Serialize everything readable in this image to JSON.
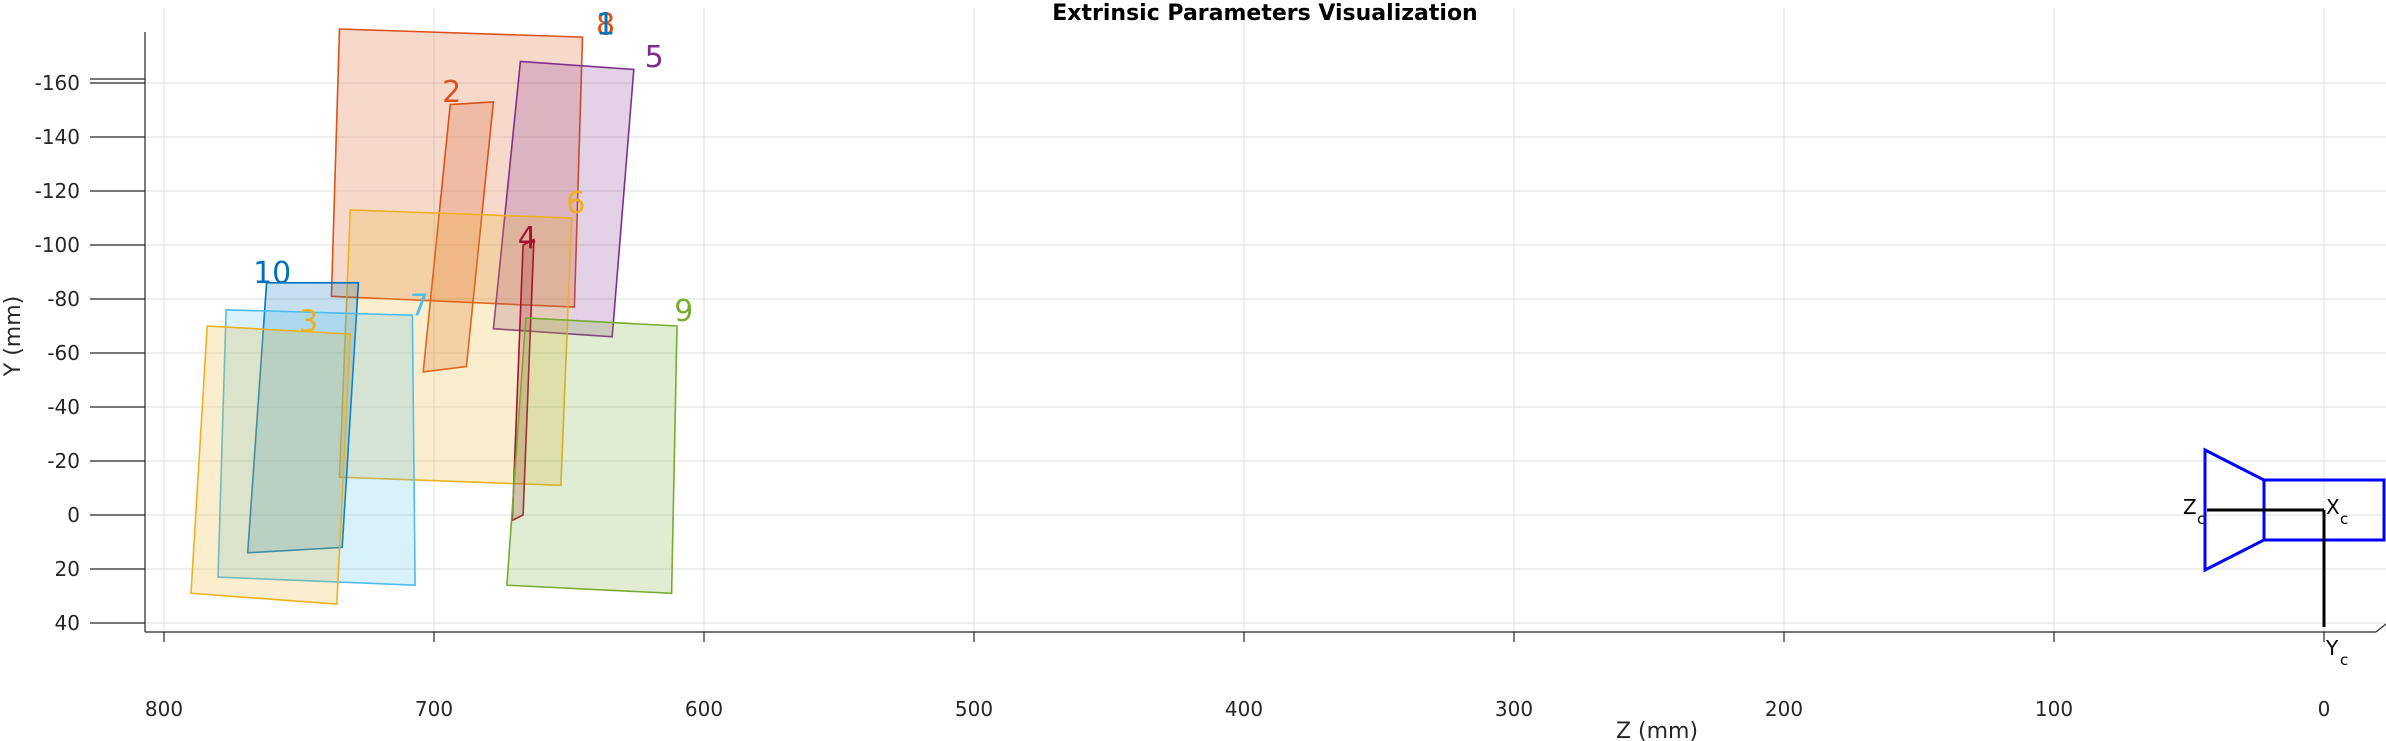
{
  "chart_data": {
    "type": "3d-extrinsics",
    "title": "Extrinsic Parameters Visualization",
    "xlabel": "Z (mm)",
    "ylabel": "Y (mm)",
    "x_ticks": [
      "800",
      "700",
      "600",
      "500",
      "400",
      "300",
      "200",
      "100",
      "0"
    ],
    "y_ticks": [
      "-160",
      "-140",
      "-120",
      "-100",
      "-80",
      "-60",
      "-40",
      "-20",
      "0",
      "20",
      "40"
    ],
    "grid": true,
    "boards": [
      {
        "name": "8",
        "color": "#D95319",
        "z": [
          735,
          645,
          648,
          738
        ],
        "y": [
          -180,
          -177,
          -77,
          -81
        ],
        "label_z": 640,
        "label_y": -182
      },
      {
        "name": "1",
        "color": "#0072BD",
        "z": [
          738,
          648,
          648,
          738
        ],
        "y": [
          -180,
          -177,
          -77,
          -81
        ],
        "label_z": 640,
        "label_y": -182,
        "hidden": true
      },
      {
        "name": "5",
        "color": "#7E2F8E",
        "z": [
          668,
          626,
          634,
          678
        ],
        "y": [
          -168,
          -165,
          -66,
          -69
        ],
        "label_z": 622,
        "label_y": -170
      },
      {
        "name": "2",
        "color": "#D95319",
        "z": [
          694,
          678,
          688,
          704
        ],
        "y": [
          -152,
          -153,
          -55,
          -53
        ],
        "label_z": 697,
        "label_y": -157
      },
      {
        "name": "6",
        "color": "#EDB120",
        "z": [
          731,
          649,
          653,
          735
        ],
        "y": [
          -113,
          -110,
          -11,
          -14
        ],
        "label_z": 651,
        "label_y": -116
      },
      {
        "name": "4",
        "color": "#A2142F",
        "z": [
          667,
          663,
          667,
          671
        ],
        "y": [
          -100,
          -102,
          0,
          2
        ],
        "label_z": 669,
        "label_y": -103
      },
      {
        "name": "10",
        "color": "#0072BD",
        "z": [
          762,
          728,
          734,
          769
        ],
        "y": [
          -86,
          -86,
          12,
          14
        ],
        "label_z": 767,
        "label_y": -90
      },
      {
        "name": "7",
        "color": "#4DBEEE",
        "z": [
          777,
          708,
          707,
          780
        ],
        "y": [
          -76,
          -74,
          26,
          23
        ],
        "label_z": 709,
        "label_y": -78
      },
      {
        "name": "3",
        "color": "#EDB120",
        "z": [
          784,
          731,
          736,
          790
        ],
        "y": [
          -70,
          -67,
          33,
          29
        ],
        "label_z": 750,
        "label_y": -72
      },
      {
        "name": "9",
        "color": "#77AC30",
        "z": [
          666,
          610,
          612,
          673
        ],
        "y": [
          -73,
          -70,
          29,
          26
        ],
        "label_z": 611,
        "label_y": -76
      }
    ],
    "camera": {
      "z_label": "Z",
      "z_sub": "c",
      "x_label": "X",
      "x_sub": "c",
      "y_label": "Y",
      "y_sub": "c",
      "color": "#0000ff"
    }
  }
}
